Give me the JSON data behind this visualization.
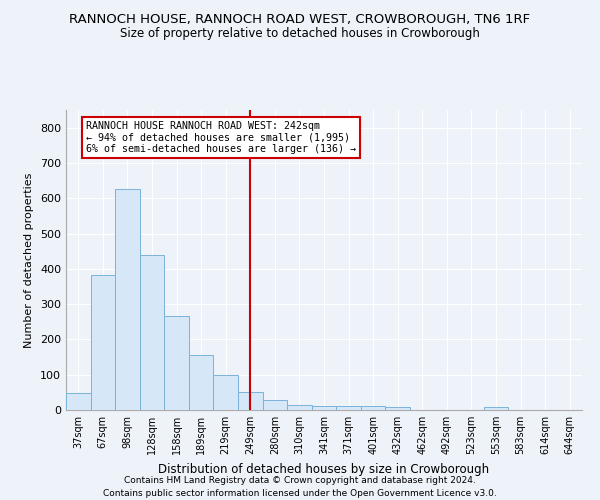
{
  "title1": "RANNOCH HOUSE, RANNOCH ROAD WEST, CROWBOROUGH, TN6 1RF",
  "title2": "Size of property relative to detached houses in Crowborough",
  "xlabel": "Distribution of detached houses by size in Crowborough",
  "ylabel": "Number of detached properties",
  "bar_labels": [
    "37sqm",
    "67sqm",
    "98sqm",
    "128sqm",
    "158sqm",
    "189sqm",
    "219sqm",
    "249sqm",
    "280sqm",
    "310sqm",
    "341sqm",
    "371sqm",
    "401sqm",
    "432sqm",
    "462sqm",
    "492sqm",
    "523sqm",
    "553sqm",
    "583sqm",
    "614sqm",
    "644sqm"
  ],
  "bar_heights": [
    47,
    383,
    625,
    438,
    265,
    155,
    98,
    52,
    28,
    15,
    12,
    12,
    10,
    8,
    0,
    0,
    0,
    8,
    0,
    0,
    0
  ],
  "bar_color": "#d6e8f7",
  "bar_edge_color": "#7ab3d9",
  "vline_x_index": 7,
  "vline_color": "#cc0000",
  "annotation_line1": "RANNOCH HOUSE RANNOCH ROAD WEST: 242sqm",
  "annotation_line2": "← 94% of detached houses are smaller (1,995)",
  "annotation_line3": "6% of semi-detached houses are larger (136) →",
  "annotation_box_color": "#ffffff",
  "annotation_box_edge": "#cc0000",
  "ylim": [
    0,
    850
  ],
  "yticks": [
    0,
    100,
    200,
    300,
    400,
    500,
    600,
    700,
    800
  ],
  "footnote1": "Contains HM Land Registry data © Crown copyright and database right 2024.",
  "footnote2": "Contains public sector information licensed under the Open Government Licence v3.0.",
  "bg_color": "#eef2f9",
  "plot_bg_color": "#eef2f9",
  "grid_color": "#ffffff",
  "title_fontsize": 9.5,
  "subtitle_fontsize": 8.5
}
